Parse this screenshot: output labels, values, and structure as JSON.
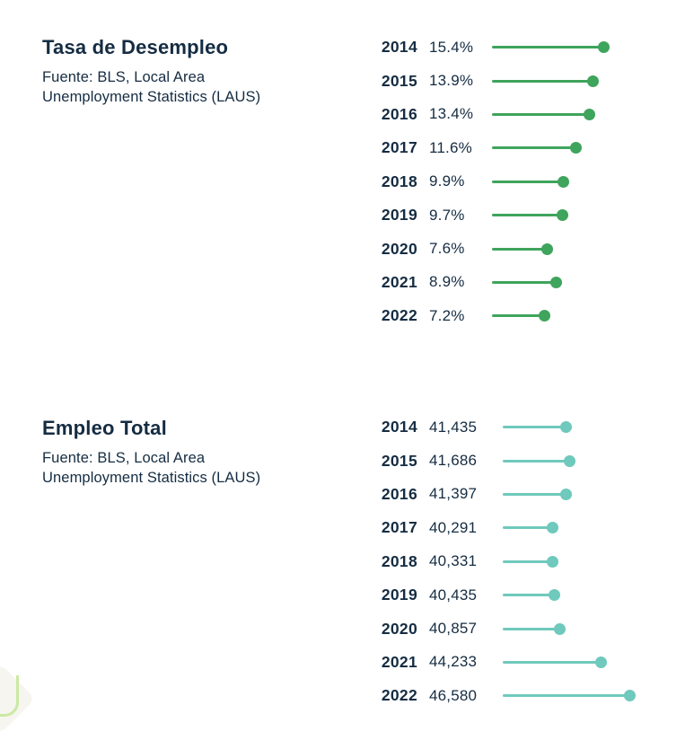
{
  "theme": {
    "background": "#ffffff",
    "text_color": "#152c42"
  },
  "chart_data": [
    {
      "type": "bar",
      "variant": "lollipop-horizontal",
      "title": "Tasa de Desempleo",
      "source_lines": [
        "Fuente: BLS, Local Area",
        "Unemployment Statistics (LAUS)"
      ],
      "categories": [
        "2014",
        "2015",
        "2016",
        "2017",
        "2018",
        "2019",
        "2020",
        "2021",
        "2022"
      ],
      "values": [
        15.4,
        13.9,
        13.4,
        11.6,
        9.9,
        9.7,
        7.6,
        8.9,
        7.2
      ],
      "value_labels": [
        "15.4%",
        "13.9%",
        "13.4%",
        "11.6%",
        "9.9%",
        "9.7%",
        "7.6%",
        "8.9%",
        "7.2%"
      ],
      "unit": "percent",
      "xlim": [
        0,
        16.5
      ],
      "accent_color": "#3fa45c",
      "grid": false,
      "legend": "none"
    },
    {
      "type": "bar",
      "variant": "lollipop-horizontal",
      "title": "Empleo Total",
      "source_lines": [
        "Fuente: BLS, Local Area",
        "Unemployment Statistics (LAUS)"
      ],
      "categories": [
        "2014",
        "2015",
        "2016",
        "2017",
        "2018",
        "2019",
        "2020",
        "2021",
        "2022"
      ],
      "values": [
        41435,
        41686,
        41397,
        40291,
        40331,
        40435,
        40857,
        44233,
        46580
      ],
      "value_labels": [
        "41,435",
        "41,686",
        "41,397",
        "40,291",
        "40,331",
        "40,435",
        "40,857",
        "44,233",
        "46,580"
      ],
      "unit": "jobs",
      "xlim": [
        36250,
        47500
      ],
      "accent_color": "#6fc9bc",
      "grid": false,
      "legend": "none"
    }
  ],
  "decoration": {
    "corner_blob_fill": "#f7f5ef",
    "corner_line_color": "#cbe9a3"
  }
}
